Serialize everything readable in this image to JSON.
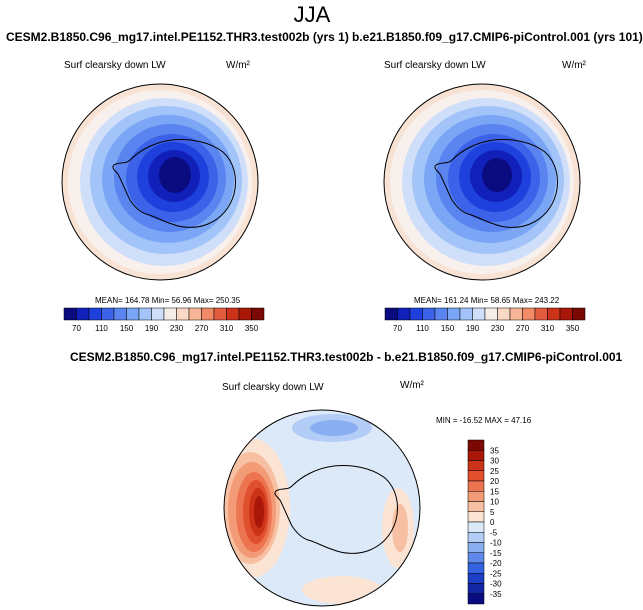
{
  "figure": {
    "season": "JJA",
    "panels": [
      {
        "title": "CESM2.B1850.C96_mg17.intel.PE1152.THR3.test002b (yrs 1)",
        "variable": "Surf clearsky down LW",
        "units": "W/m²",
        "stats": "MEAN= 164.78   Min= 56.96   Max= 250.35"
      },
      {
        "title": "b.e21.B1850.f09_g17.CMIP6-piControl.001 (yrs 101)",
        "variable": "Surf clearsky down LW",
        "units": "W/m²",
        "stats": "MEAN= 161.24   Min= 58.65   Max= 243.22"
      },
      {
        "title": "CESM2.B1850.C96_mg17.intel.PE1152.THR3.test002b - b.e21.B1850.f09_g17.CMIP6-piControl.001",
        "variable": "Surf clearsky down LW",
        "units": "W/m²",
        "stats": "MIN = -16.52  MAX =  47.16"
      }
    ]
  },
  "chart_data": [
    {
      "type": "heatmap",
      "title": "Surf clearsky down LW",
      "projection": "south-polar stereographic",
      "units": "W/m2",
      "colorbar": {
        "orientation": "horizontal",
        "levels": [
          70,
          110,
          150,
          190,
          230,
          270,
          310,
          350
        ],
        "colors": [
          "#0b0b80",
          "#1020b8",
          "#1e40dc",
          "#3b62e8",
          "#5a85f0",
          "#7aa6f5",
          "#a3c4f8",
          "#cfdffa",
          "#f4eee8",
          "#fad8c4",
          "#f7b496",
          "#f18a66",
          "#e45c3e",
          "#cc3218",
          "#a81708",
          "#7a0803"
        ]
      },
      "stats": {
        "mean": 164.78,
        "min": 56.96,
        "max": 250.35
      }
    },
    {
      "type": "heatmap",
      "title": "Surf clearsky down LW",
      "projection": "south-polar stereographic",
      "units": "W/m2",
      "colorbar": {
        "orientation": "horizontal",
        "levels": [
          70,
          110,
          150,
          190,
          230,
          270,
          310,
          350
        ],
        "colors": [
          "#0b0b80",
          "#1020b8",
          "#1e40dc",
          "#3b62e8",
          "#5a85f0",
          "#7aa6f5",
          "#a3c4f8",
          "#cfdffa",
          "#f4eee8",
          "#fad8c4",
          "#f7b496",
          "#f18a66",
          "#e45c3e",
          "#cc3218",
          "#a81708",
          "#7a0803"
        ]
      },
      "stats": {
        "mean": 161.24,
        "min": 58.65,
        "max": 243.22
      }
    },
    {
      "type": "heatmap",
      "title": "Surf clearsky down LW",
      "projection": "south-polar stereographic",
      "units": "W/m2",
      "colorbar": {
        "orientation": "vertical",
        "levels": [
          35,
          30,
          25,
          20,
          15,
          10,
          5,
          0,
          -5,
          -10,
          -15,
          -20,
          -25,
          -30,
          -35
        ],
        "colors": [
          "#7a0803",
          "#a81708",
          "#cc3218",
          "#e0502f",
          "#ec7451",
          "#f39a77",
          "#f8c0a2",
          "#fbe4d4",
          "#dce9f9",
          "#b3cdf6",
          "#8aaef2",
          "#5f88eb",
          "#3562e0",
          "#1d3fc8",
          "#1326a4",
          "#0b0b80"
        ]
      },
      "stats": {
        "min": -16.52,
        "max": 47.16
      }
    }
  ]
}
